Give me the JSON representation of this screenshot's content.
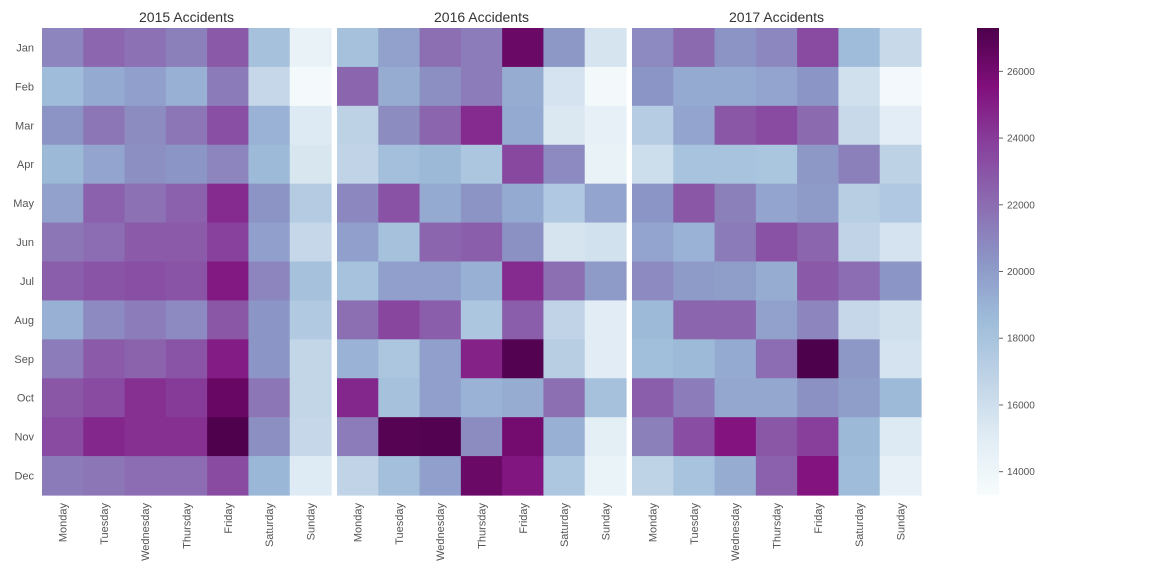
{
  "colors": {
    "colormap": "BuPu",
    "stops": [
      "#f7fcfd",
      "#e0ecf4",
      "#bfd3e6",
      "#9ebcda",
      "#8c96c6",
      "#8c6bb1",
      "#88419d",
      "#810f7c",
      "#4d004b"
    ],
    "background": "#ffffff",
    "text": "#333333",
    "tick_text": "#555555"
  },
  "chart_data": [
    {
      "type": "heatmap",
      "title": "2015 Accidents",
      "x_labels": [
        "Monday",
        "Tuesday",
        "Wednesday",
        "Thursday",
        "Friday",
        "Saturday",
        "Sunday"
      ],
      "y_labels": [
        "Jan",
        "Feb",
        "Mar",
        "Apr",
        "May",
        "Jun",
        "Jul",
        "Aug",
        "Sep",
        "Oct",
        "Nov",
        "Dec"
      ],
      "values": [
        [
          21000,
          22200,
          21800,
          21200,
          22800,
          18200,
          14400
        ],
        [
          18500,
          19400,
          19900,
          19100,
          21400,
          16500,
          13500
        ],
        [
          20400,
          21600,
          20700,
          21600,
          23200,
          19000,
          15200
        ],
        [
          18700,
          19600,
          20600,
          20300,
          21000,
          18600,
          15500
        ],
        [
          19800,
          22500,
          21800,
          22500,
          24600,
          20400,
          17400
        ],
        [
          21600,
          22000,
          22700,
          22700,
          23800,
          19900,
          16500
        ],
        [
          22600,
          23000,
          23200,
          23000,
          25200,
          21000,
          18200
        ],
        [
          19100,
          20800,
          21300,
          20800,
          22900,
          20300,
          17500
        ],
        [
          21300,
          22700,
          22400,
          23000,
          25100,
          20300,
          16600
        ],
        [
          22900,
          23400,
          24400,
          24000,
          26400,
          21600,
          16600
        ],
        [
          23400,
          24700,
          24400,
          24400,
          27200,
          20600,
          16500
        ],
        [
          21400,
          21600,
          22000,
          22000,
          23400,
          18800,
          15100
        ]
      ]
    },
    {
      "type": "heatmap",
      "title": "2016 Accidents",
      "x_labels": [
        "Monday",
        "Tuesday",
        "Wednesday",
        "Thursday",
        "Friday",
        "Saturday",
        "Sunday"
      ],
      "y_labels": [
        "Jan",
        "Feb",
        "Mar",
        "Apr",
        "May",
        "Jun",
        "Jul",
        "Aug",
        "Sep",
        "Oct",
        "Nov",
        "Dec"
      ],
      "values": [
        [
          18200,
          19800,
          21900,
          21300,
          26300,
          20200,
          15600
        ],
        [
          22300,
          19300,
          20600,
          21300,
          19300,
          15700,
          13600
        ],
        [
          16900,
          20700,
          22300,
          24600,
          19400,
          15300,
          14600
        ],
        [
          16700,
          18300,
          18700,
          17800,
          23500,
          20800,
          14400
        ],
        [
          20900,
          23100,
          19400,
          20400,
          19400,
          17600,
          19600
        ],
        [
          19900,
          18200,
          22300,
          22600,
          20500,
          15600,
          15800
        ],
        [
          18100,
          19900,
          19900,
          19100,
          24600,
          21900,
          20100
        ],
        [
          21900,
          23600,
          22600,
          17800,
          22600,
          16700,
          15000
        ],
        [
          19000,
          17800,
          19900,
          24900,
          27100,
          17200,
          15000
        ],
        [
          24700,
          18200,
          19900,
          19000,
          19300,
          21900,
          18200
        ],
        [
          21300,
          27000,
          27100,
          20700,
          26000,
          19100,
          14800
        ],
        [
          16700,
          18300,
          19900,
          26300,
          25300,
          17700,
          14300
        ]
      ]
    },
    {
      "type": "heatmap",
      "title": "2017 Accidents",
      "x_labels": [
        "Monday",
        "Tuesday",
        "Wednesday",
        "Thursday",
        "Friday",
        "Saturday",
        "Sunday"
      ],
      "y_labels": [
        "Jan",
        "Feb",
        "Mar",
        "Apr",
        "May",
        "Jun",
        "Jul",
        "Aug",
        "Sep",
        "Oct",
        "Nov",
        "Dec"
      ],
      "values": [
        [
          20800,
          22100,
          20400,
          20900,
          23400,
          18500,
          16300
        ],
        [
          20300,
          19400,
          19400,
          19600,
          20300,
          15900,
          13700
        ],
        [
          17300,
          19600,
          22900,
          23400,
          22100,
          16300,
          14900
        ],
        [
          16100,
          18000,
          18000,
          17900,
          20200,
          21200,
          16900
        ],
        [
          20300,
          22900,
          21200,
          19600,
          20100,
          17200,
          17600
        ],
        [
          19600,
          19000,
          21400,
          23100,
          22300,
          16700,
          15700
        ],
        [
          20800,
          20100,
          20000,
          19300,
          22800,
          22000,
          20300
        ],
        [
          18600,
          22300,
          22300,
          19800,
          21000,
          16500,
          15900
        ],
        [
          18400,
          18600,
          19400,
          22000,
          27300,
          20200,
          15700
        ],
        [
          22600,
          21300,
          19500,
          19500,
          20500,
          20000,
          18600
        ],
        [
          21200,
          23300,
          25400,
          22900,
          23900,
          18700,
          15200
        ],
        [
          16800,
          18000,
          19300,
          22500,
          25400,
          18500,
          14600
        ]
      ]
    }
  ],
  "colorbar": {
    "min": 13300,
    "max": 27300,
    "ticks": [
      14000,
      16000,
      18000,
      20000,
      22000,
      24000,
      26000
    ],
    "tick_labels": [
      "14000",
      "16000",
      "18000",
      "20000",
      "22000",
      "24000",
      "26000"
    ]
  }
}
